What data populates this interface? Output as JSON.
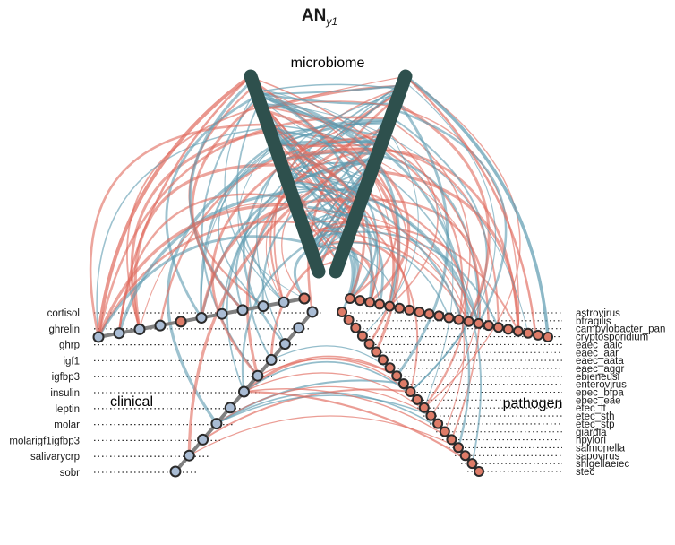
{
  "title": {
    "main": "AN",
    "subscript": "y1"
  },
  "groups": {
    "microbiome": "microbiome",
    "clinical": "clinical",
    "pathogen": "pathogen"
  },
  "clinical_nodes": [
    "cortisol",
    "ghrelin",
    "ghrp",
    "igf1",
    "igfbp3",
    "insulin",
    "leptin",
    "molar",
    "molarigf1igfbp3",
    "salivarycrp",
    "sobr"
  ],
  "pathogen_nodes": [
    "astrovirus",
    "bfragilis",
    "campylobacter_pan",
    "cryptosporidium",
    "eaec_aaic",
    "eaec_aar",
    "eaec_aata",
    "eaec_aggr",
    "ebieneusi",
    "enterovirus",
    "epec_bfpa",
    "epec_eae",
    "etec_lt",
    "etec_sth",
    "etec_stp",
    "giardia",
    "hpylori",
    "salmonella",
    "sapovirus",
    "shigellaeiec",
    "stec"
  ],
  "colors": {
    "positive_edge": "#e0695c",
    "negative_edge": "#5b9aaf",
    "microbiome_node": "#2e504d",
    "clinical_node": "#a9bcd4",
    "pathogen_node": "#de7c68",
    "node_outline": "#2b2b2b",
    "axis_line": "#808080"
  }
}
